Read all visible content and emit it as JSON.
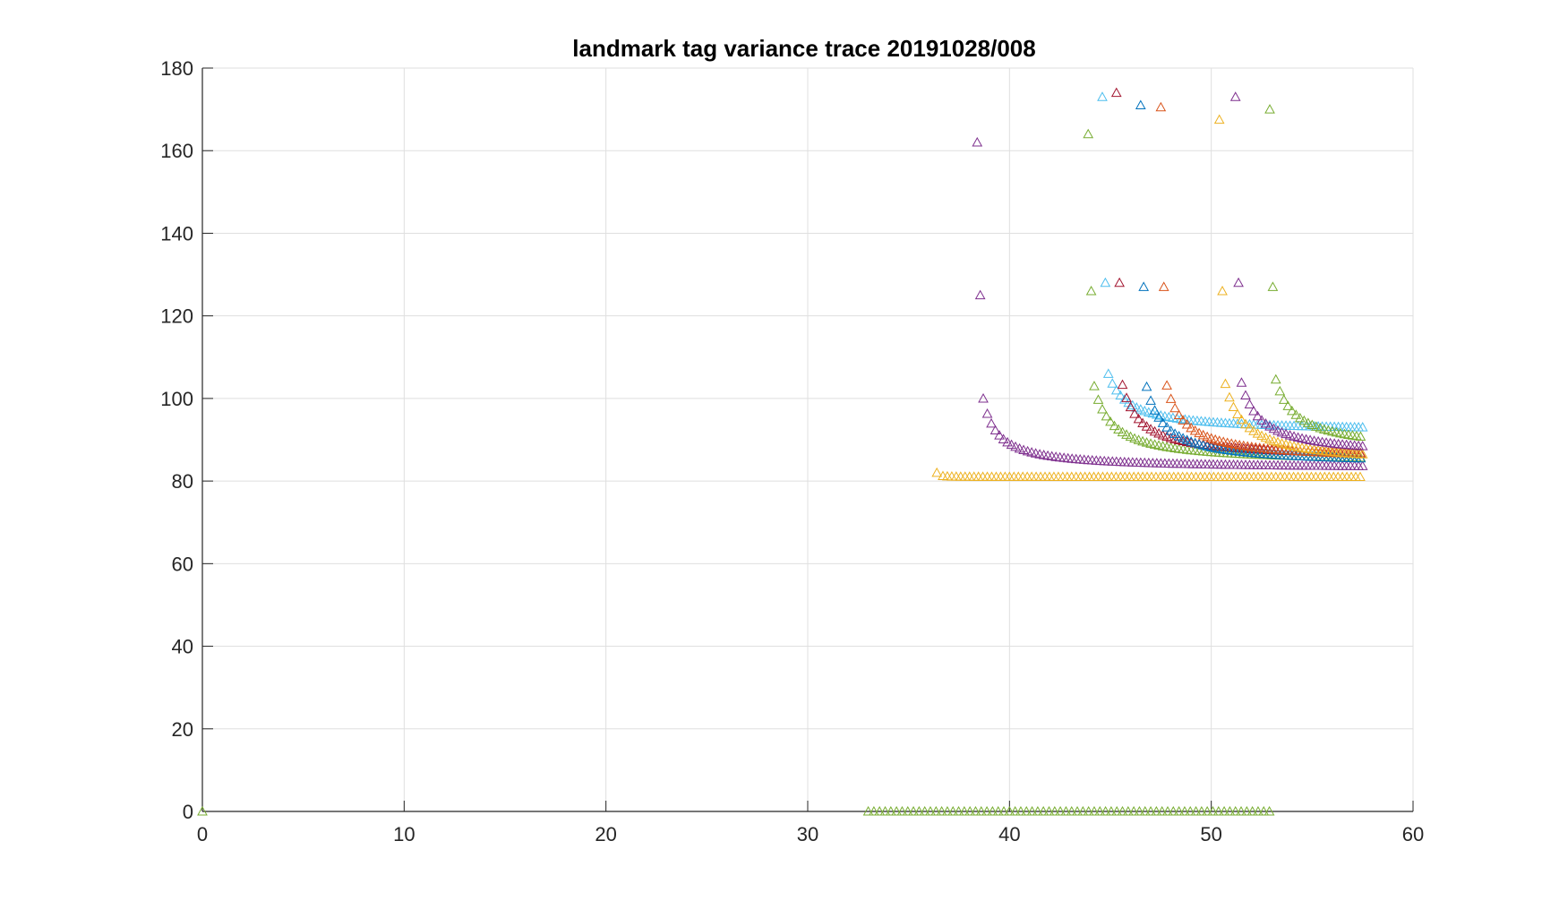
{
  "chart_data": {
    "type": "scatter",
    "title": "landmark tag variance trace  20191028/008",
    "xlabel": "",
    "ylabel": "",
    "xlim": [
      0,
      60
    ],
    "ylim": [
      0,
      180
    ],
    "xticks": [
      "0",
      "10",
      "20",
      "30",
      "40",
      "50",
      "60"
    ],
    "yticks": [
      "0",
      "20",
      "40",
      "60",
      "80",
      "100",
      "120",
      "140",
      "160",
      "180"
    ],
    "grid": true,
    "legend": "none",
    "marker": "triangle-open",
    "baseline": {
      "color": "#77AC30",
      "points": [
        [
          0,
          0
        ]
      ],
      "x_start": 33.0,
      "x_end": 53.0,
      "step": 0.28,
      "y": 0
    },
    "series": [
      {
        "color": "#EDB120",
        "start": 36.4,
        "start_y": 82.0,
        "floor": 81.0,
        "end": 57.5,
        "step": 0.22,
        "decay": 0.1,
        "spike_hi": null,
        "spike_mid": null
      },
      {
        "color": "#7E2F8E",
        "start": 38.4,
        "start_y": 162,
        "floor": 83.0,
        "end": 57.5,
        "step": 0.2,
        "decay": 0.55,
        "spike_hi": null,
        "spike_mid": 125
      },
      {
        "color": "#77AC30",
        "start": 43.9,
        "start_y": 164,
        "floor": 84.5,
        "end": 57.5,
        "step": 0.2,
        "decay": 0.8,
        "spike_hi": null,
        "spike_mid": 126
      },
      {
        "color": "#4DBEEE",
        "start": 44.6,
        "start_y": 173,
        "floor": 92.0,
        "end": 57.5,
        "step": 0.2,
        "decay": 0.9,
        "spike_hi": null,
        "spike_mid": 128
      },
      {
        "color": "#A2142F",
        "start": 45.3,
        "start_y": 174,
        "floor": 85.5,
        "end": 57.5,
        "step": 0.2,
        "decay": 0.8,
        "spike_hi": null,
        "spike_mid": 128
      },
      {
        "color": "#0072BD",
        "start": 46.5,
        "start_y": 171,
        "floor": 84.0,
        "end": 57.5,
        "step": 0.2,
        "decay": 0.8,
        "spike_hi": null,
        "spike_mid": 127
      },
      {
        "color": "#D95319",
        "start": 47.5,
        "start_y": 170.5,
        "floor": 85.0,
        "end": 57.5,
        "step": 0.2,
        "decay": 0.8,
        "spike_hi": null,
        "spike_mid": 127
      },
      {
        "color": "#EDB120",
        "start": 50.4,
        "start_y": 167.5,
        "floor": 84.0,
        "end": 57.5,
        "step": 0.2,
        "decay": 0.9,
        "spike_hi": null,
        "spike_mid": 126
      },
      {
        "color": "#7E2F8E",
        "start": 51.2,
        "start_y": 173,
        "floor": 86.0,
        "end": 57.5,
        "step": 0.2,
        "decay": 0.85,
        "spike_hi": null,
        "spike_mid": 128
      },
      {
        "color": "#77AC30",
        "start": 52.9,
        "start_y": 170,
        "floor": 87.5,
        "end": 57.5,
        "step": 0.2,
        "decay": 0.9,
        "spike_hi": null,
        "spike_mid": 127
      }
    ]
  }
}
